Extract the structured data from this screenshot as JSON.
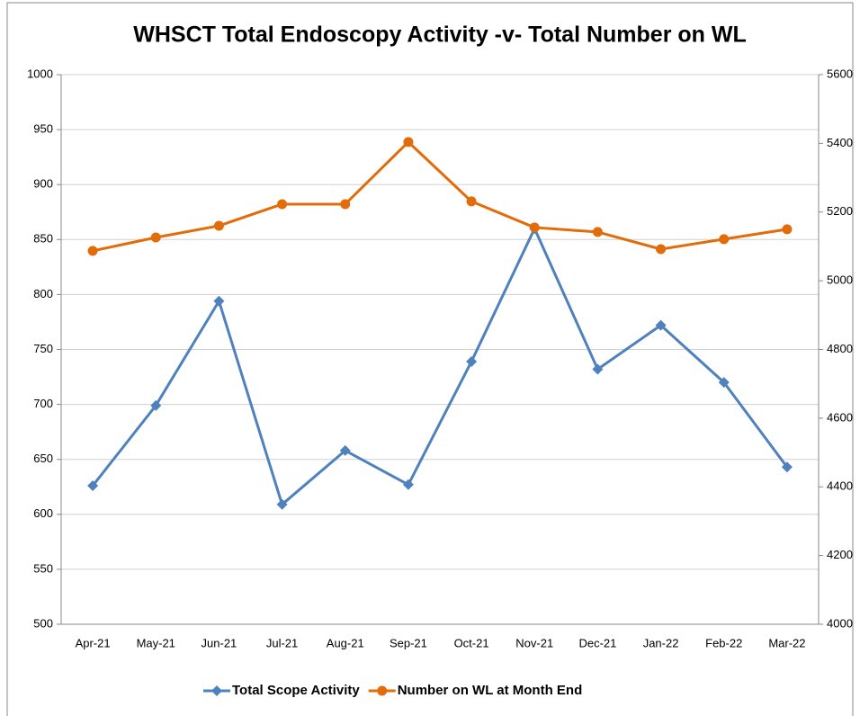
{
  "chart_data": {
    "type": "line",
    "title": "WHSCT  Total Endoscopy Activity -v- Total Number on WL",
    "categories": [
      "Apr-21",
      "May-21",
      "Jun-21",
      "Jul-21",
      "Aug-21",
      "Sep-21",
      "Oct-21",
      "Nov-21",
      "Dec-21",
      "Jan-22",
      "Feb-22",
      "Mar-22"
    ],
    "series": [
      {
        "name": "Total Scope Activity",
        "color": "#4f81bd",
        "marker": "diamond",
        "values": [
          626,
          699,
          794,
          609,
          658,
          627,
          739,
          860,
          732,
          772,
          720,
          643
        ]
      },
      {
        "name": "Number on WL at Month End",
        "color": "#e36c0a",
        "marker": "circle",
        "axis": "y2",
        "values": [
          5087,
          5126,
          5160,
          5223,
          5223,
          5404,
          5231,
          5155,
          5142,
          5092,
          5121,
          5150
        ]
      }
    ],
    "ylim": [
      500,
      1000
    ],
    "yticks": [
      500,
      550,
      600,
      650,
      700,
      750,
      800,
      850,
      900,
      950,
      1000
    ],
    "y2lim": [
      4000,
      5600
    ],
    "y2ticks": [
      4000,
      4200,
      4400,
      4600,
      4800,
      5000,
      5200,
      5400,
      5600
    ],
    "grid": true,
    "legend": "bottom"
  }
}
